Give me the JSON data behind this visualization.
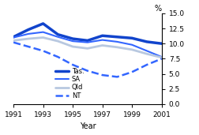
{
  "xlabel": "Year",
  "ylabel": "%",
  "xlim": [
    1991,
    2001
  ],
  "ylim": [
    0.0,
    15.0
  ],
  "yticks": [
    0.0,
    2.5,
    5.0,
    7.5,
    10.0,
    12.5,
    15.0
  ],
  "xticks": [
    1991,
    1993,
    1995,
    1997,
    1999,
    2001
  ],
  "series": {
    "Tas.": {
      "x": [
        1991,
        1992,
        1993,
        1994,
        1995,
        1996,
        1997,
        1998,
        1999,
        2000,
        2001
      ],
      "y": [
        11.1,
        12.3,
        13.3,
        11.5,
        10.8,
        10.5,
        11.3,
        11.1,
        10.9,
        10.3,
        10.0
      ],
      "lw": 2.5,
      "ls": "solid",
      "color": "#1144cc"
    },
    "SA": {
      "x": [
        1991,
        1992,
        1993,
        1994,
        1995,
        1996,
        1997,
        1998,
        1999,
        2000,
        2001
      ],
      "y": [
        11.0,
        11.6,
        11.9,
        11.1,
        10.4,
        10.2,
        10.6,
        10.3,
        9.8,
        8.8,
        7.8
      ],
      "lw": 1.5,
      "ls": "solid",
      "color": "#3366ff"
    },
    "Qld": {
      "x": [
        1991,
        1992,
        1993,
        1994,
        1995,
        1996,
        1997,
        1998,
        1999,
        2000,
        2001
      ],
      "y": [
        10.5,
        10.8,
        11.0,
        10.4,
        9.5,
        9.2,
        9.7,
        9.4,
        9.0,
        8.3,
        7.7
      ],
      "lw": 2.0,
      "ls": "solid",
      "color": "#b8c8e0"
    },
    "NT": {
      "x": [
        1991,
        1992,
        1993,
        1994,
        1995,
        1996,
        1997,
        1998,
        1999,
        2000,
        2001
      ],
      "y": [
        10.2,
        9.5,
        8.8,
        7.8,
        6.5,
        5.5,
        4.8,
        4.5,
        5.3,
        6.5,
        7.5
      ],
      "lw": 1.8,
      "ls": "dashed",
      "color": "#3366ff"
    }
  },
  "legend_order": [
    "Tas.",
    "SA",
    "Qld",
    "NT"
  ],
  "background_color": "#ffffff",
  "tick_fontsize": 6.5,
  "label_fontsize": 7.0,
  "legend_fontsize": 6.0
}
